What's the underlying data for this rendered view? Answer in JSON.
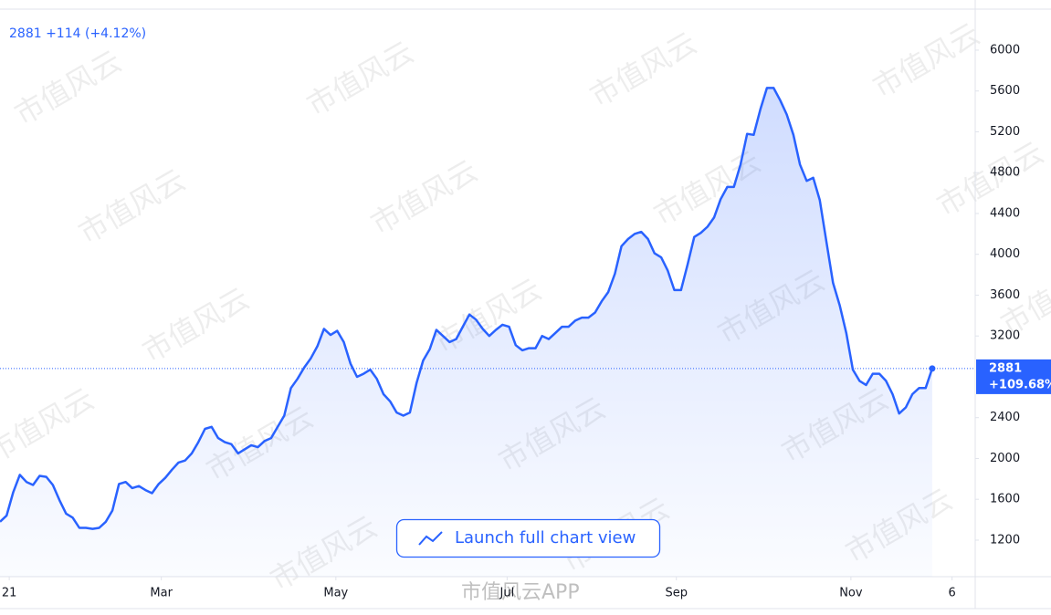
{
  "header": {
    "price": "2881 +114 (+4.12%)"
  },
  "button": "Launch full chart view",
  "watermark": "市值风云",
  "watermark_app": "市值风云APP",
  "chart_data": {
    "type": "area",
    "color": "#2962ff",
    "values": [
      1380,
      1440,
      1670,
      1840,
      1770,
      1740,
      1830,
      1820,
      1740,
      1590,
      1460,
      1420,
      1320,
      1320,
      1310,
      1320,
      1380,
      1490,
      1750,
      1770,
      1710,
      1730,
      1690,
      1660,
      1750,
      1810,
      1890,
      1960,
      1980,
      2050,
      2160,
      2290,
      2310,
      2200,
      2160,
      2140,
      2050,
      2090,
      2130,
      2110,
      2170,
      2200,
      2310,
      2420,
      2690,
      2780,
      2890,
      2980,
      3100,
      3270,
      3210,
      3250,
      3140,
      2930,
      2800,
      2830,
      2870,
      2780,
      2630,
      2560,
      2450,
      2420,
      2450,
      2740,
      2960,
      3070,
      3260,
      3200,
      3140,
      3170,
      3290,
      3410,
      3360,
      3270,
      3200,
      3260,
      3310,
      3290,
      3110,
      3060,
      3080,
      3080,
      3200,
      3170,
      3230,
      3290,
      3290,
      3350,
      3380,
      3380,
      3430,
      3540,
      3630,
      3810,
      4080,
      4150,
      4200,
      4220,
      4150,
      4010,
      3970,
      3840,
      3650,
      3650,
      3900,
      4170,
      4210,
      4270,
      4360,
      4540,
      4660,
      4660,
      4880,
      5180,
      5170,
      5420,
      5630,
      5630,
      5510,
      5370,
      5170,
      4880,
      4720,
      4750,
      4530,
      4120,
      3720,
      3500,
      3230,
      2870,
      2760,
      2720,
      2830,
      2830,
      2760,
      2630,
      2440,
      2500,
      2630,
      2690,
      2690,
      2881
    ],
    "last_change": "+109.68%",
    "ylim": [
      842,
      6402
    ],
    "yticks": [
      1200,
      1600,
      2000,
      2400,
      3200,
      3600,
      4000,
      4400,
      4800,
      5200,
      5600,
      6000
    ],
    "xlim": [
      0,
      147.5
    ],
    "xticks": [
      {
        "value": 1.4,
        "label": "21"
      },
      {
        "value": 24.4,
        "label": "Mar"
      },
      {
        "value": 50.8,
        "label": "May"
      },
      {
        "value": 76.7,
        "label": "Jul"
      },
      {
        "value": 102.3,
        "label": "Sep"
      },
      {
        "value": 128.7,
        "label": "Nov"
      },
      {
        "value": 144,
        "label": "6"
      }
    ],
    "grid": false
  }
}
